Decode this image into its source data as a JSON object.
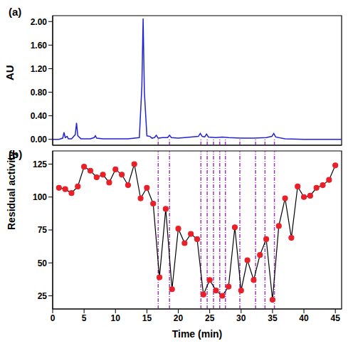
{
  "chart_data": [
    {
      "type": "line",
      "title": "(a)",
      "y_label": "AU",
      "x": [
        0,
        1,
        1.6,
        1.8,
        2.0,
        2.3,
        2.5,
        3,
        3.6,
        3.8,
        4.0,
        4.5,
        6,
        6.6,
        6.8,
        7.0,
        8,
        10,
        12,
        13.8,
        14.2,
        14.4,
        14.6,
        15,
        15.5,
        15.8,
        16.2,
        16.5,
        16.8,
        17.5,
        18.3,
        18.6,
        18.9,
        20,
        21,
        22,
        23.2,
        23.5,
        23.8,
        24.2,
        24.5,
        24.8,
        26,
        27,
        28,
        30,
        32,
        34,
        34.9,
        35.2,
        35.5,
        37,
        40,
        43,
        46
      ],
      "series": [
        {
          "name": "AU",
          "color": "#2323d6",
          "values": [
            0,
            0,
            0.02,
            0.12,
            0.03,
            0.05,
            0.01,
            0.01,
            0.08,
            0.28,
            0.06,
            0.01,
            0.01,
            0.03,
            0.06,
            0.02,
            0.01,
            0.01,
            0.01,
            0.03,
            0.9,
            2.05,
            0.8,
            0.06,
            0.05,
            0.02,
            0.03,
            0.07,
            0.02,
            0.03,
            0.03,
            0.07,
            0.03,
            0.02,
            0.03,
            0.04,
            0.05,
            0.1,
            0.05,
            0.04,
            0.09,
            0.04,
            0.03,
            0.04,
            0.03,
            0.02,
            0.02,
            0.03,
            0.05,
            0.1,
            0.04,
            0.01,
            0,
            0,
            0
          ]
        }
      ],
      "xlim": [
        0,
        46
      ],
      "xticks": [
        0,
        5,
        10,
        15,
        20,
        25,
        30,
        35,
        40,
        45
      ],
      "ylim": [
        -0.1,
        2.1
      ],
      "yticks": [
        {
          "value": 0,
          "label": "0.00"
        },
        {
          "value": 0.4,
          "label": "0.40"
        },
        {
          "value": 0.8,
          "label": "0.80"
        },
        {
          "value": 1.2,
          "label": "1.20"
        },
        {
          "value": 1.6,
          "label": "1.60"
        },
        {
          "value": 2.0,
          "label": "2.00"
        }
      ],
      "tick_labels": "y"
    },
    {
      "type": "line",
      "title": "(b)",
      "x_label": "Time (min)",
      "y_label": "Residual activity (%)",
      "x": [
        1,
        2,
        3,
        4,
        5,
        6,
        7,
        8,
        9,
        10,
        11,
        12,
        13,
        14,
        15,
        16,
        17,
        18,
        19,
        20,
        21,
        22,
        23,
        24,
        25,
        26,
        27,
        28,
        29,
        30,
        31,
        32,
        33,
        34,
        35,
        36,
        37,
        38,
        39,
        40,
        41,
        42,
        43,
        44,
        45
      ],
      "series": [
        {
          "name": "Residual activity",
          "color": "#000000",
          "marker": "circle",
          "values": [
            107,
            106,
            103,
            108,
            123,
            120,
            115,
            117,
            111,
            121,
            117,
            109,
            125,
            99,
            107,
            95,
            39,
            91,
            30,
            76,
            65,
            72,
            68,
            26,
            37,
            29,
            25,
            32,
            77,
            29,
            52,
            37,
            56,
            68,
            22,
            78,
            99,
            69,
            108,
            100,
            101,
            107,
            109,
            113,
            124
          ]
        }
      ],
      "marked_x": [
        16.8,
        18.6,
        23.6,
        24.6,
        25.6,
        26.6,
        27.5,
        29.8,
        32.3,
        33.8,
        35.3
      ],
      "xlim": [
        0,
        46
      ],
      "xticks": [
        0,
        5,
        10,
        15,
        20,
        25,
        30,
        35,
        40,
        45
      ],
      "ylim": [
        15,
        135
      ],
      "yticks": [
        25,
        50,
        75,
        100,
        125
      ]
    }
  ]
}
